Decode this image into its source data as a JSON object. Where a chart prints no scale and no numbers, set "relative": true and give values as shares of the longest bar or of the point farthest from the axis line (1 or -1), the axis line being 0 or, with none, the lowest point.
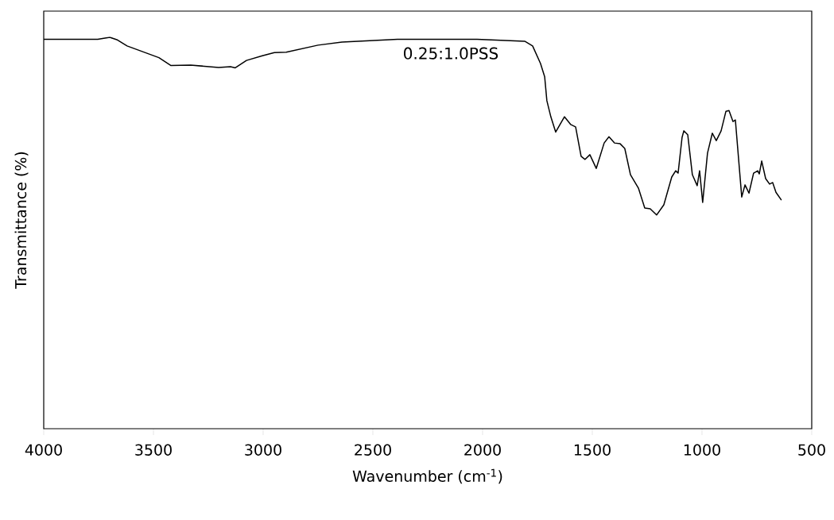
{
  "chart_data": {
    "type": "line",
    "relative": true,
    "xlabel": "Wavenumber (cm$^{-1}$)",
    "ylabel": "Transmittance (%)",
    "annotations": [
      "0.25:1.0PSS"
    ],
    "xlim": [
      4000,
      500
    ],
    "xticks": [
      4000,
      3500,
      3000,
      2500,
      2000,
      1500,
      1000,
      500
    ],
    "x": [
      4000,
      3754,
      3699,
      3667,
      3620,
      3475,
      3420,
      3330,
      3203,
      3149,
      3127,
      3076,
      3004,
      2949,
      2895,
      2750,
      2641,
      2388,
      2025,
      1808,
      1772,
      1736,
      1717,
      1707,
      1689,
      1667,
      1627,
      1598,
      1576,
      1551,
      1533,
      1511,
      1482,
      1446,
      1424,
      1399,
      1373,
      1352,
      1326,
      1290,
      1261,
      1236,
      1207,
      1174,
      1138,
      1120,
      1109,
      1091,
      1083,
      1065,
      1044,
      1022,
      1011,
      997,
      975,
      953,
      935,
      913,
      891,
      877,
      859,
      848,
      819,
      804,
      786,
      765,
      746,
      739,
      728,
      710,
      692,
      678,
      663,
      638
    ],
    "series": [
      {
        "color": "#000000",
        "values": [
          0.995,
          0.995,
          1,
          0.994,
          0.978,
          0.948,
          0.928,
          0.929,
          0.923,
          0.925,
          0.922,
          0.941,
          0.953,
          0.961,
          0.962,
          0.98,
          0.988,
          0.995,
          0.995,
          0.99,
          0.978,
          0.933,
          0.899,
          0.838,
          0.797,
          0.758,
          0.797,
          0.777,
          0.771,
          0.696,
          0.688,
          0.7,
          0.665,
          0.73,
          0.746,
          0.73,
          0.728,
          0.716,
          0.649,
          0.615,
          0.564,
          0.562,
          0.546,
          0.572,
          0.643,
          0.659,
          0.653,
          0.744,
          0.761,
          0.751,
          0.649,
          0.621,
          0.659,
          0.578,
          0.704,
          0.755,
          0.736,
          0.761,
          0.811,
          0.813,
          0.785,
          0.789,
          0.592,
          0.623,
          0.602,
          0.653,
          0.659,
          0.651,
          0.684,
          0.639,
          0.625,
          0.629,
          0.604,
          0.584
        ]
      }
    ]
  }
}
